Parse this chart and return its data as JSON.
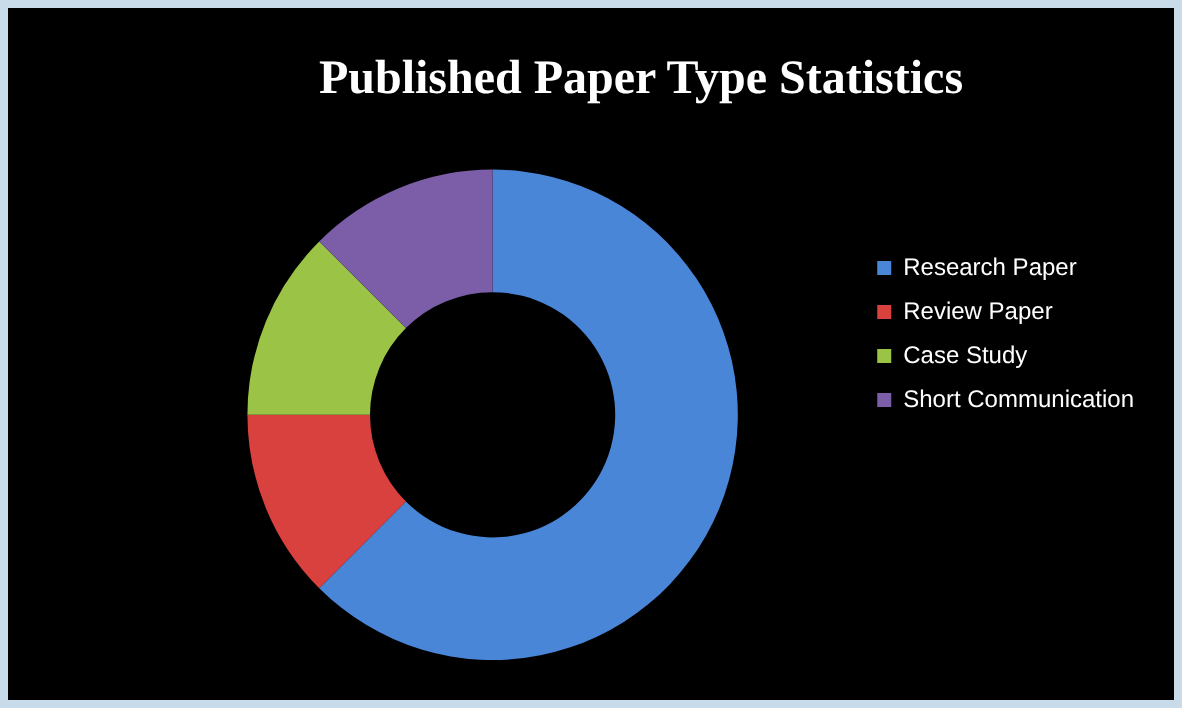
{
  "chart_data": {
    "type": "donut",
    "title": "Published Paper Type Statistics",
    "categories": [
      "Research Paper",
      "Review Paper",
      "Case Study",
      "Short Communication"
    ],
    "values": [
      62.5,
      12.5,
      12.5,
      12.5
    ],
    "colors": [
      "#4a86d8",
      "#d9413e",
      "#9bc345",
      "#7b5ea7"
    ],
    "legend": "right"
  }
}
